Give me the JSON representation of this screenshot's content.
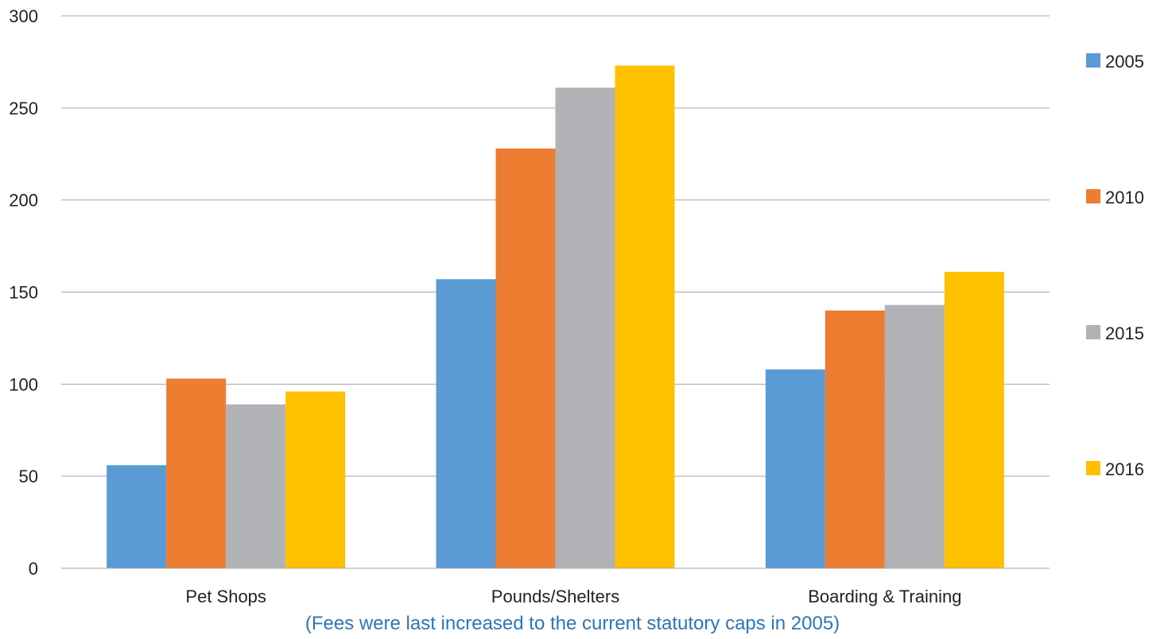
{
  "chart_data": {
    "type": "bar",
    "categories": [
      "Pet Shops",
      "Pounds/Shelters",
      "Boarding & Training"
    ],
    "series": [
      {
        "name": "2005",
        "color": "#5b9bd5",
        "values": [
          56,
          157,
          108
        ]
      },
      {
        "name": "2010",
        "color": "#ed7d31",
        "values": [
          103,
          228,
          140
        ]
      },
      {
        "name": "2015",
        "color": "#b1b2b6",
        "values": [
          89,
          261,
          143
        ]
      },
      {
        "name": "2016",
        "color": "#ffc000",
        "values": [
          96,
          273,
          161
        ]
      }
    ],
    "ylim": [
      0,
      300
    ],
    "yticks": [
      "0",
      "50",
      "100",
      "150",
      "200",
      "250",
      "300"
    ],
    "grid": true,
    "legend_position": "right",
    "caption": "(Fees were last increased to the current statutory caps in 2005)"
  }
}
